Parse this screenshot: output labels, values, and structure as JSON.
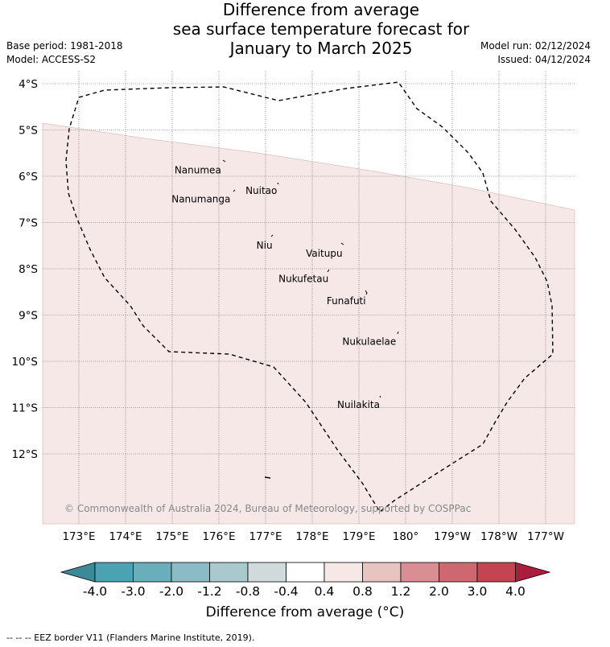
{
  "title_lines": [
    "Difference from average",
    "sea surface temperature forecast for",
    "January to March 2025"
  ],
  "meta_left": [
    "Base period: 1981-2018",
    "Model: ACCESS-S2"
  ],
  "meta_right": [
    "Model run: 02/12/2024",
    "Issued: 04/12/2024"
  ],
  "copyright": "© Commonwealth of Australia 2024, Bureau of Meteorology, supported by COSPPac",
  "lat_labels": [
    "4°S",
    "5°S",
    "6°S",
    "7°S",
    "8°S",
    "9°S",
    "10°S",
    "11°S",
    "12°S"
  ],
  "lon_labels": [
    "173°E",
    "174°E",
    "175°E",
    "176°E",
    "177°E",
    "178°E",
    "179°E",
    "180°",
    "179°W",
    "178°W",
    "177°W"
  ],
  "islands": [
    {
      "name": "Nanumea",
      "lon": 176.1,
      "lat": -5.68
    },
    {
      "name": "Nuitao",
      "lon": 177.3,
      "lat": -6.12
    },
    {
      "name": "Nanumanga",
      "lon": 176.3,
      "lat": -6.3
    },
    {
      "name": "Niu",
      "lon": 177.2,
      "lat": -7.3
    },
    {
      "name": "Vaitupu",
      "lon": 178.7,
      "lat": -7.48
    },
    {
      "name": "Nukufetau",
      "lon": 178.4,
      "lat": -8.03
    },
    {
      "name": "Funafuti",
      "lon": 179.2,
      "lat": -8.5
    },
    {
      "name": "Nukulaelae",
      "lon": 179.85,
      "lat": -9.38
    },
    {
      "name": "Nuilakita",
      "lon": 179.5,
      "lat": -10.75
    }
  ],
  "colorbar": {
    "ticks": [
      "-4.0",
      "-3.0",
      "-2.0",
      "-1.2",
      "-0.8",
      "-0.4",
      "0.4",
      "0.8",
      "1.2",
      "2.0",
      "3.0",
      "4.0"
    ],
    "colors": [
      "#4aa3b3",
      "#6aaebb",
      "#8bbcc5",
      "#a9c9cc",
      "#d1dadb",
      "#ffffff",
      "#f5e8e7",
      "#e8c4c1",
      "#d98e94",
      "#cf6770",
      "#c44452"
    ],
    "under_color": "#3b8a97",
    "over_color": "#a81e3c",
    "label": "Difference from average (°C)"
  },
  "anomaly_colors": {
    "region_0.4_0.8": "#f5e8e7"
  },
  "eez_note": "--  --  -- EEZ border V11 (Flanders Marine Institute, 2019)."
}
